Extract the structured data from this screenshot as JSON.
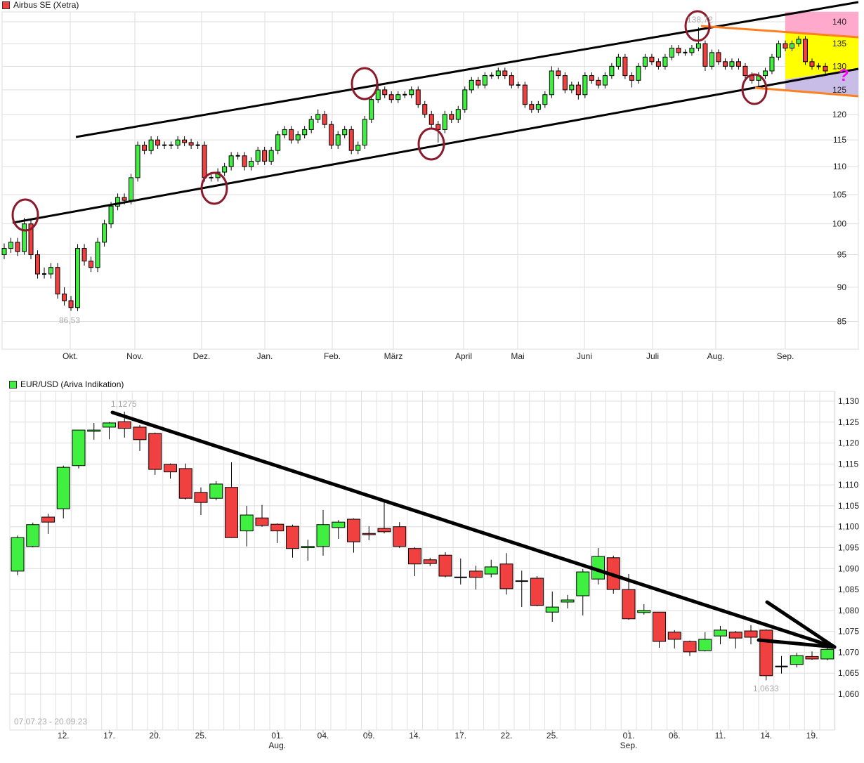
{
  "chart_data": [
    {
      "type": "candlestick",
      "title": "Airbus SE (Xetra)",
      "legend_color": "#f04040",
      "y_scale": "log",
      "ylim": [
        81,
        145
      ],
      "yticks": [
        85,
        90,
        95,
        100,
        105,
        110,
        115,
        120,
        125,
        130,
        135,
        140
      ],
      "xtick_labels": [
        "Okt.",
        "Nov.",
        "Dez.",
        "Jan.",
        "Feb.",
        "März",
        "April",
        "Mai",
        "Juni",
        "Juli",
        "Aug.",
        "Sep."
      ],
      "grid": true,
      "annotations": {
        "low_label": "86,53",
        "high_label": "138,72",
        "question_mark": "?"
      },
      "colors": {
        "up": "#40f040",
        "down": "#f04040",
        "circle": "#8b1a2b",
        "trend": "#000000",
        "projection_line": "#ff8020",
        "zone_top": "#ffaacc",
        "zone_mid": "#ffff00",
        "zone_low": "#c8bde6",
        "question": "#ff00ff"
      },
      "ohlc": [
        [
          95,
          96.8,
          94.3,
          96
        ],
        [
          96,
          97.7,
          95.3,
          97
        ],
        [
          97,
          97.7,
          94.8,
          95.5
        ],
        [
          95.5,
          101,
          95,
          100
        ],
        [
          100,
          100.7,
          94.3,
          95
        ],
        [
          95,
          95.7,
          91.3,
          92
        ],
        [
          92,
          93,
          91.3,
          92
        ],
        [
          92,
          93.7,
          91.3,
          93
        ],
        [
          93,
          93.7,
          88.3,
          89
        ],
        [
          89,
          90,
          87.3,
          88
        ],
        [
          88,
          88.7,
          86.53,
          87
        ],
        [
          87,
          96.7,
          86.5,
          96
        ],
        [
          96,
          96.7,
          93.3,
          94
        ],
        [
          94,
          94.7,
          92.3,
          93
        ],
        [
          93,
          97.7,
          92.3,
          97
        ],
        [
          97,
          100.7,
          96.3,
          100
        ],
        [
          100,
          103.7,
          99.3,
          103
        ],
        [
          103,
          105.2,
          102.3,
          104.5
        ],
        [
          104.5,
          105.2,
          103.3,
          104
        ],
        [
          104,
          108.7,
          103.3,
          108
        ],
        [
          108,
          114.7,
          107.3,
          114
        ],
        [
          114,
          114.7,
          112.3,
          113
        ],
        [
          113,
          115.7,
          112.3,
          115
        ],
        [
          115,
          115.7,
          113.3,
          114
        ],
        [
          114,
          114.7,
          113.3,
          114
        ],
        [
          114,
          114.7,
          113.3,
          114
        ],
        [
          114,
          115.7,
          113.3,
          115
        ],
        [
          115,
          115.7,
          113.8,
          114.5
        ],
        [
          114.5,
          115.2,
          113.3,
          114
        ],
        [
          114,
          114.7,
          113.3,
          114
        ],
        [
          114,
          114.7,
          107.3,
          108
        ],
        [
          108,
          108.7,
          107.3,
          108
        ],
        [
          108,
          109.7,
          107.3,
          109
        ],
        [
          109,
          110.7,
          108.3,
          110
        ],
        [
          110,
          112.7,
          109.3,
          112
        ],
        [
          112,
          112.7,
          111.3,
          112
        ],
        [
          112,
          112.7,
          109.3,
          110
        ],
        [
          110,
          111.7,
          109.3,
          111
        ],
        [
          111,
          113.7,
          110.3,
          113
        ],
        [
          113,
          113.7,
          110.3,
          111
        ],
        [
          111,
          113.7,
          110.3,
          113
        ],
        [
          113,
          116.7,
          112.3,
          116
        ],
        [
          116,
          117.7,
          115.3,
          117
        ],
        [
          117,
          117.7,
          114.3,
          115
        ],
        [
          115,
          116.7,
          114.3,
          116
        ],
        [
          116,
          117.7,
          115.3,
          117
        ],
        [
          117,
          119.7,
          116.3,
          119
        ],
        [
          119,
          121,
          118.3,
          120
        ],
        [
          120,
          120.7,
          117.3,
          118
        ],
        [
          118,
          118.7,
          113.3,
          114
        ],
        [
          114,
          116.7,
          113.3,
          116
        ],
        [
          116,
          117.7,
          115.3,
          117
        ],
        [
          117,
          117.7,
          112.3,
          113
        ],
        [
          113,
          114.7,
          112.3,
          114
        ],
        [
          114,
          119.7,
          113.3,
          119
        ],
        [
          119,
          123.7,
          118.3,
          123
        ],
        [
          123,
          126,
          122.3,
          125
        ],
        [
          125,
          125.7,
          123.3,
          124
        ],
        [
          124,
          124.7,
          122.3,
          123
        ],
        [
          123,
          124.7,
          122.3,
          124
        ],
        [
          124,
          124.7,
          123.3,
          124
        ],
        [
          124,
          125.7,
          123.3,
          125
        ],
        [
          125,
          125.7,
          121.3,
          122
        ],
        [
          122,
          122.7,
          119.3,
          120
        ],
        [
          120,
          120.7,
          117.3,
          118
        ],
        [
          118,
          118.7,
          114.5,
          117
        ],
        [
          117,
          120.7,
          116.3,
          120
        ],
        [
          120,
          120.7,
          118.3,
          119
        ],
        [
          119,
          121.7,
          118.3,
          121
        ],
        [
          121,
          125.7,
          120.3,
          125
        ],
        [
          125,
          127.7,
          124.3,
          127
        ],
        [
          127,
          127.7,
          125.3,
          126
        ],
        [
          126,
          128.7,
          125.3,
          128
        ],
        [
          128,
          128.7,
          127.3,
          128
        ],
        [
          128,
          129.7,
          127.3,
          129
        ],
        [
          129,
          129.7,
          127.3,
          128
        ],
        [
          128,
          128.7,
          125.3,
          126
        ],
        [
          126,
          126.7,
          125.3,
          126
        ],
        [
          126,
          126.7,
          121.3,
          122
        ],
        [
          122,
          122.7,
          120.3,
          121
        ],
        [
          121,
          122.7,
          120.3,
          122
        ],
        [
          122,
          124.7,
          121.3,
          124
        ],
        [
          124,
          130,
          123.3,
          129
        ],
        [
          129,
          129.7,
          127.3,
          128
        ],
        [
          128,
          128.7,
          124.3,
          125
        ],
        [
          125,
          126.7,
          124.3,
          126
        ],
        [
          126,
          126.7,
          123,
          124
        ],
        [
          124,
          128.7,
          123.3,
          128
        ],
        [
          128,
          128.7,
          126.3,
          127
        ],
        [
          127,
          127.7,
          125.3,
          126
        ],
        [
          126,
          128.7,
          125.3,
          128
        ],
        [
          128,
          130.7,
          127.3,
          130
        ],
        [
          130,
          132.7,
          129.3,
          132
        ],
        [
          132,
          132.7,
          127.3,
          128
        ],
        [
          128,
          128.7,
          125.5,
          127
        ],
        [
          127,
          130.7,
          126.3,
          130
        ],
        [
          130,
          132.7,
          129.3,
          132
        ],
        [
          132,
          132.7,
          130.3,
          131
        ],
        [
          131,
          131.7,
          129.3,
          130
        ],
        [
          130,
          132.7,
          129.3,
          132
        ],
        [
          132,
          134.7,
          131.3,
          134
        ],
        [
          134,
          134.7,
          132.3,
          133
        ],
        [
          133,
          133.7,
          132.3,
          133
        ],
        [
          133,
          134.7,
          132.3,
          134
        ],
        [
          134,
          138.72,
          133.3,
          135
        ],
        [
          135,
          135.7,
          129,
          130
        ],
        [
          130,
          133.7,
          129.3,
          133
        ],
        [
          133,
          133.7,
          130.3,
          131
        ],
        [
          131,
          131.7,
          129.3,
          130
        ],
        [
          130,
          131.7,
          129.3,
          131
        ],
        [
          131,
          131.7,
          129.3,
          130
        ],
        [
          130,
          130.7,
          127.3,
          128
        ],
        [
          128,
          128.7,
          126.3,
          127
        ],
        [
          127,
          128.7,
          125.5,
          128
        ],
        [
          128,
          129.7,
          127.3,
          129
        ],
        [
          129,
          132.7,
          128.3,
          132
        ],
        [
          132,
          135.7,
          131.3,
          135
        ],
        [
          135,
          135.7,
          133.3,
          134
        ],
        [
          134,
          135.7,
          133.3,
          135
        ],
        [
          135,
          136.7,
          134.3,
          136
        ],
        [
          136,
          136.7,
          130.3,
          131
        ],
        [
          131,
          131.7,
          129.3,
          130
        ],
        [
          130,
          130.7,
          129.3,
          130
        ],
        [
          130,
          130.7,
          128.3,
          129
        ]
      ]
    },
    {
      "type": "candlestick",
      "title": "EUR/USD (Ariva Indikation)",
      "legend_color": "#40f040",
      "date_range": "07.07.23 - 20.09.23",
      "ylim": [
        1.055,
        1.132
      ],
      "yticks": [
        "1,060",
        "1,065",
        "1,070",
        "1,075",
        "1,080",
        "1,085",
        "1,090",
        "1,095",
        "1,100",
        "1,105",
        "1,110",
        "1,115",
        "1,120",
        "1,125",
        "1,130"
      ],
      "xticks": [
        {
          "date": "12.07",
          "label": "12."
        },
        {
          "date": "17.07",
          "label": "17."
        },
        {
          "date": "20.07",
          "label": "20."
        },
        {
          "date": "25.07",
          "label": "25."
        },
        {
          "date": "01.08",
          "label": "01.",
          "sub": "Aug."
        },
        {
          "date": "04.08",
          "label": "04."
        },
        {
          "date": "09.08",
          "label": "09."
        },
        {
          "date": "14.08",
          "label": "14."
        },
        {
          "date": "17.08",
          "label": "17."
        },
        {
          "date": "22.08",
          "label": "22."
        },
        {
          "date": "25.08",
          "label": "25."
        },
        {
          "date": "01.09",
          "label": "01.",
          "sub": "Sep."
        },
        {
          "date": "06.09",
          "label": "06."
        },
        {
          "date": "11.09",
          "label": "11."
        },
        {
          "date": "14.09",
          "label": "14."
        },
        {
          "date": "19.09",
          "label": "19."
        }
      ],
      "grid": true,
      "annotations": {
        "high_label": "1,1275",
        "low_label": "1,0633"
      },
      "colors": {
        "up": "#40f040",
        "down": "#f04040",
        "trend": "#000000"
      },
      "dates": [
        "07.07",
        "10.07",
        "11.07",
        "12.07",
        "13.07",
        "14.07",
        "17.07",
        "18.07",
        "19.07",
        "20.07",
        "21.07",
        "24.07",
        "25.07",
        "26.07",
        "27.07",
        "28.07",
        "31.07",
        "01.08",
        "02.08",
        "03.08",
        "04.08",
        "07.08",
        "08.08",
        "09.08",
        "10.08",
        "11.08",
        "14.08",
        "15.08",
        "16.08",
        "17.08",
        "18.08",
        "21.08",
        "22.08",
        "23.08",
        "24.08",
        "25.08",
        "28.08",
        "29.08",
        "30.08",
        "31.08",
        "01.09",
        "04.09",
        "05.09",
        "06.09",
        "07.09",
        "08.09",
        "11.09",
        "12.09",
        "13.09",
        "14.09",
        "15.09",
        "18.09",
        "19.09",
        "20.09"
      ],
      "ohlc": [
        [
          1.0894,
          1.0979,
          1.0884,
          1.0974
        ],
        [
          1.0953,
          1.101,
          1.0951,
          1.1005
        ],
        [
          1.1023,
          1.1031,
          1.0983,
          1.1011
        ],
        [
          1.1043,
          1.1146,
          1.102,
          1.1142
        ],
        [
          1.1146,
          1.1231,
          1.1139,
          1.1231
        ],
        [
          1.1228,
          1.1248,
          1.1208,
          1.1231
        ],
        [
          1.1238,
          1.125,
          1.1209,
          1.1248
        ],
        [
          1.1251,
          1.1275,
          1.1213,
          1.1235
        ],
        [
          1.1238,
          1.1243,
          1.1181,
          1.1208
        ],
        [
          1.1223,
          1.1225,
          1.1124,
          1.1137
        ],
        [
          1.1149,
          1.1151,
          1.1115,
          1.1131
        ],
        [
          1.1139,
          1.1151,
          1.1065,
          1.1068
        ],
        [
          1.1082,
          1.1094,
          1.1028,
          1.1058
        ],
        [
          1.1068,
          1.1109,
          1.1063,
          1.1102
        ],
        [
          1.1094,
          1.1154,
          1.0973,
          1.0974
        ],
        [
          1.099,
          1.105,
          1.0953,
          1.1028
        ],
        [
          1.1021,
          1.1052,
          1.1,
          1.1003
        ],
        [
          1.1006,
          1.1008,
          1.0961,
          1.099
        ],
        [
          1.1001,
          1.1005,
          1.0926,
          1.0948
        ],
        [
          1.095,
          1.0969,
          1.0919,
          1.0953
        ],
        [
          1.0953,
          1.104,
          1.0931,
          1.1005
        ],
        [
          1.0998,
          1.1016,
          1.0971,
          1.1011
        ],
        [
          1.1018,
          1.102,
          1.0938,
          1.0964
        ],
        [
          1.0984,
          1.1001,
          1.0968,
          1.0981
        ],
        [
          1.0996,
          1.1062,
          1.0984,
          1.0988
        ],
        [
          1.1,
          1.1011,
          1.0949,
          1.0953
        ],
        [
          1.0948,
          1.0951,
          1.0882,
          1.0911
        ],
        [
          1.0921,
          1.0926,
          1.0906,
          1.0912
        ],
        [
          1.0932,
          1.0939,
          1.0879,
          1.0882
        ],
        [
          1.0877,
          1.0924,
          1.0862,
          1.0879
        ],
        [
          1.0894,
          1.0907,
          1.085,
          1.0879
        ],
        [
          1.0887,
          1.0921,
          1.0879,
          1.0904
        ],
        [
          1.0911,
          1.0937,
          1.0838,
          1.0852
        ],
        [
          1.0868,
          1.0895,
          1.0808,
          1.087
        ],
        [
          1.0877,
          1.0882,
          1.081,
          1.0812
        ],
        [
          1.0796,
          1.0845,
          1.0773,
          1.0808
        ],
        [
          1.082,
          1.0837,
          1.0805,
          1.0825
        ],
        [
          1.0835,
          1.0899,
          1.0788,
          1.0892
        ],
        [
          1.0875,
          1.0949,
          1.0862,
          1.0929
        ],
        [
          1.0926,
          1.0931,
          1.084,
          1.085
        ],
        [
          1.085,
          1.0887,
          1.0778,
          1.078
        ],
        [
          1.0795,
          1.0815,
          1.079,
          1.08
        ],
        [
          1.0796,
          1.0796,
          1.0711,
          1.0726
        ],
        [
          1.0748,
          1.0753,
          1.0709,
          1.0731
        ],
        [
          1.0726,
          1.0728,
          1.0691,
          1.0701
        ],
        [
          1.0704,
          1.0748,
          1.0702,
          1.0731
        ],
        [
          1.0739,
          1.0763,
          1.0719,
          1.0753
        ],
        [
          1.0748,
          1.0751,
          1.0709,
          1.0734
        ],
        [
          1.0751,
          1.0765,
          1.0719,
          1.0736
        ],
        [
          1.0753,
          1.0755,
          1.0633,
          1.0644
        ],
        [
          1.0664,
          1.0691,
          1.0649,
          1.0666
        ],
        [
          1.0671,
          1.0699,
          1.0664,
          1.0692
        ],
        [
          1.069,
          1.0702,
          1.0682,
          1.0684
        ],
        [
          1.0684,
          1.071,
          1.0681,
          1.0707
        ]
      ]
    }
  ]
}
